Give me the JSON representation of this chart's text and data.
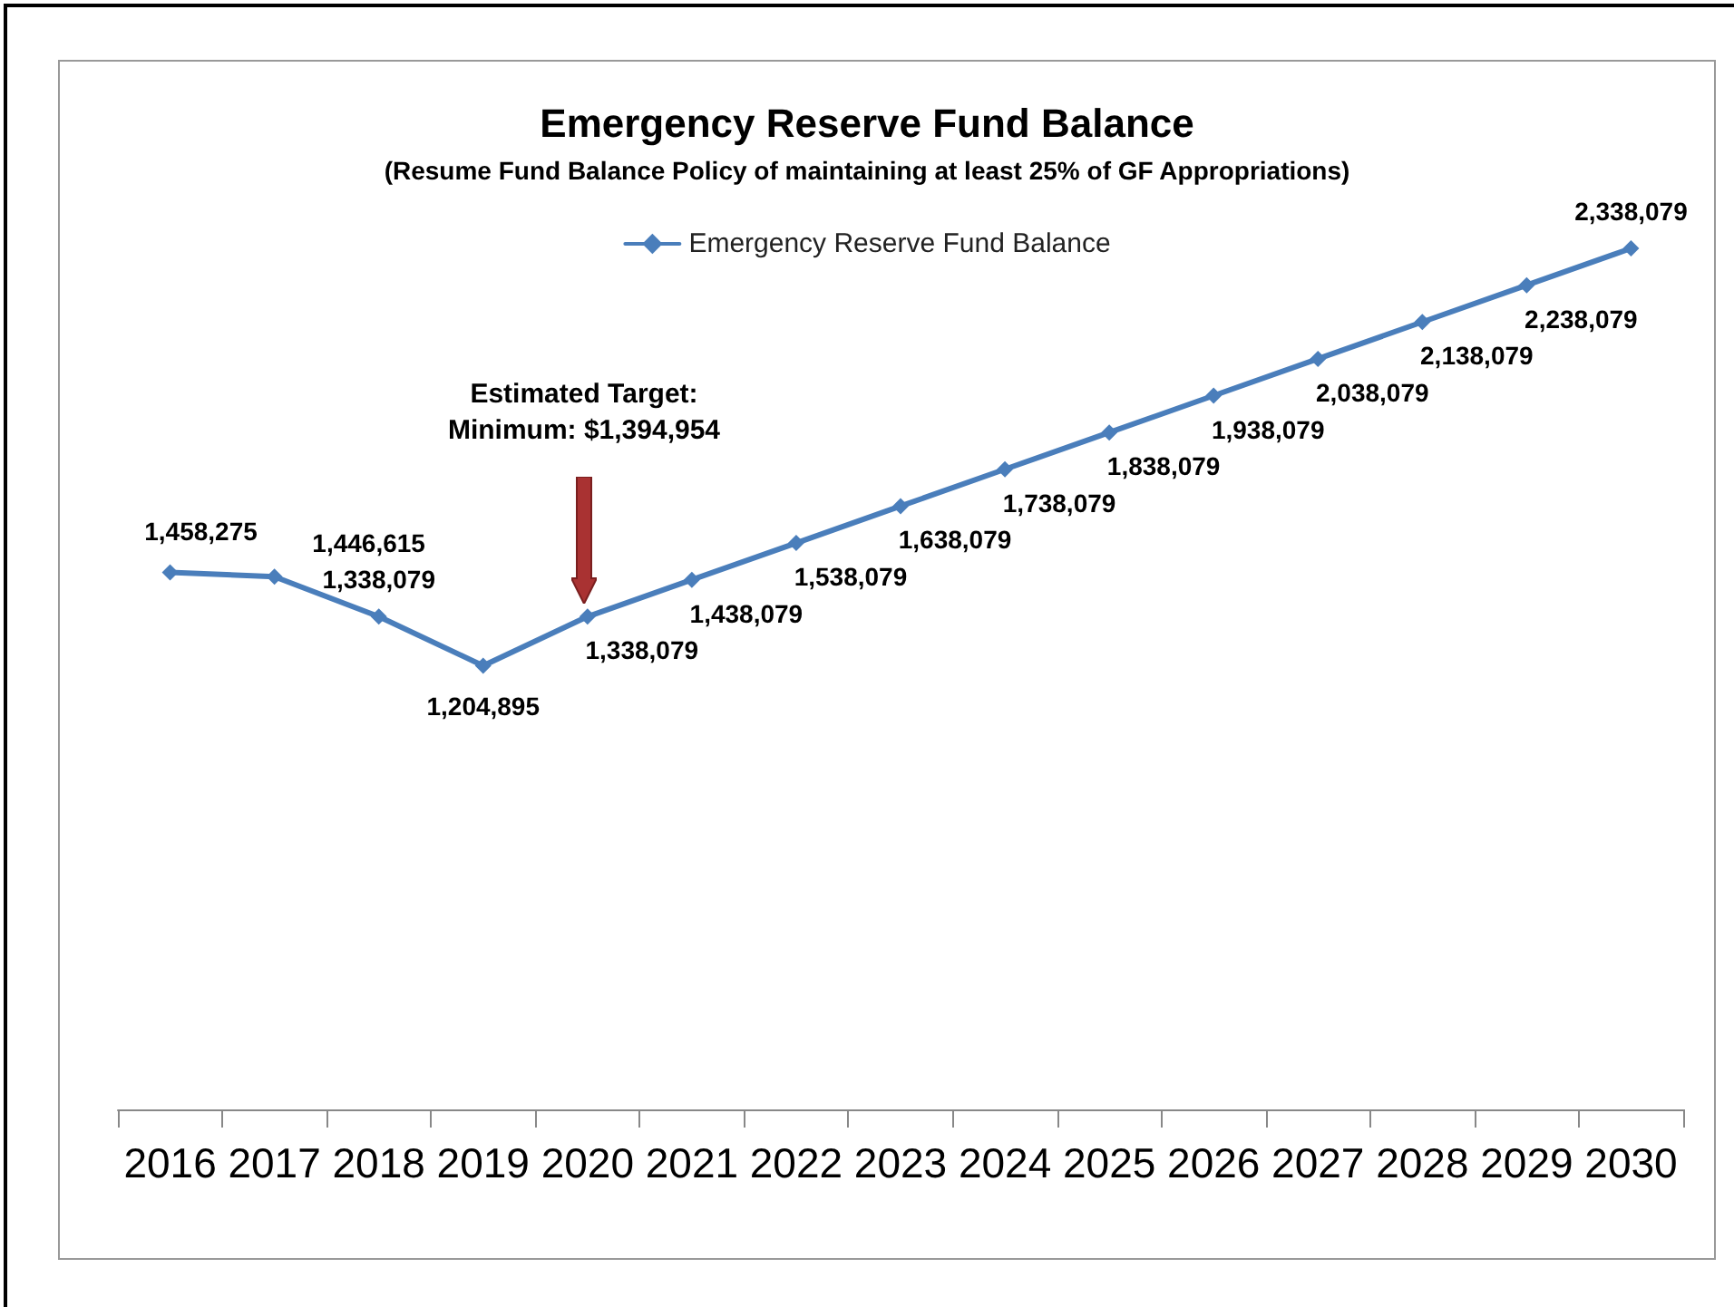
{
  "chart_data": {
    "type": "line",
    "title": "Emergency Reserve Fund Balance",
    "subtitle": "(Resume Fund Balance Policy of maintaining at least 25% of GF Appropriations)",
    "categories": [
      "2016",
      "2017",
      "2018",
      "2019",
      "2020",
      "2021",
      "2022",
      "2023",
      "2024",
      "2025",
      "2026",
      "2027",
      "2028",
      "2029",
      "2030"
    ],
    "series": [
      {
        "name": "Emergency Reserve Fund Balance",
        "color": "#4a7ebb",
        "values": [
          1458275,
          1446615,
          1338079,
          1204895,
          1338079,
          1438079,
          1538079,
          1638079,
          1738079,
          1838079,
          1938079,
          2038079,
          2138079,
          2238079,
          2338079
        ],
        "value_labels": [
          "1,458,275",
          "1,446,615",
          "1,338,079",
          "1,204,895",
          "1,338,079",
          "1,438,079",
          "1,538,079",
          "1,638,079",
          "1,738,079",
          "1,838,079",
          "1,938,079",
          "2,038,079",
          "2,138,079",
          "2,238,079",
          "2,338,079"
        ]
      }
    ],
    "annotations": [
      "Estimated Target:\nMinimum: $1,394,954"
    ],
    "legend": "top",
    "marker": "diamond",
    "line_style": "solid",
    "tick_labels": "x"
  }
}
